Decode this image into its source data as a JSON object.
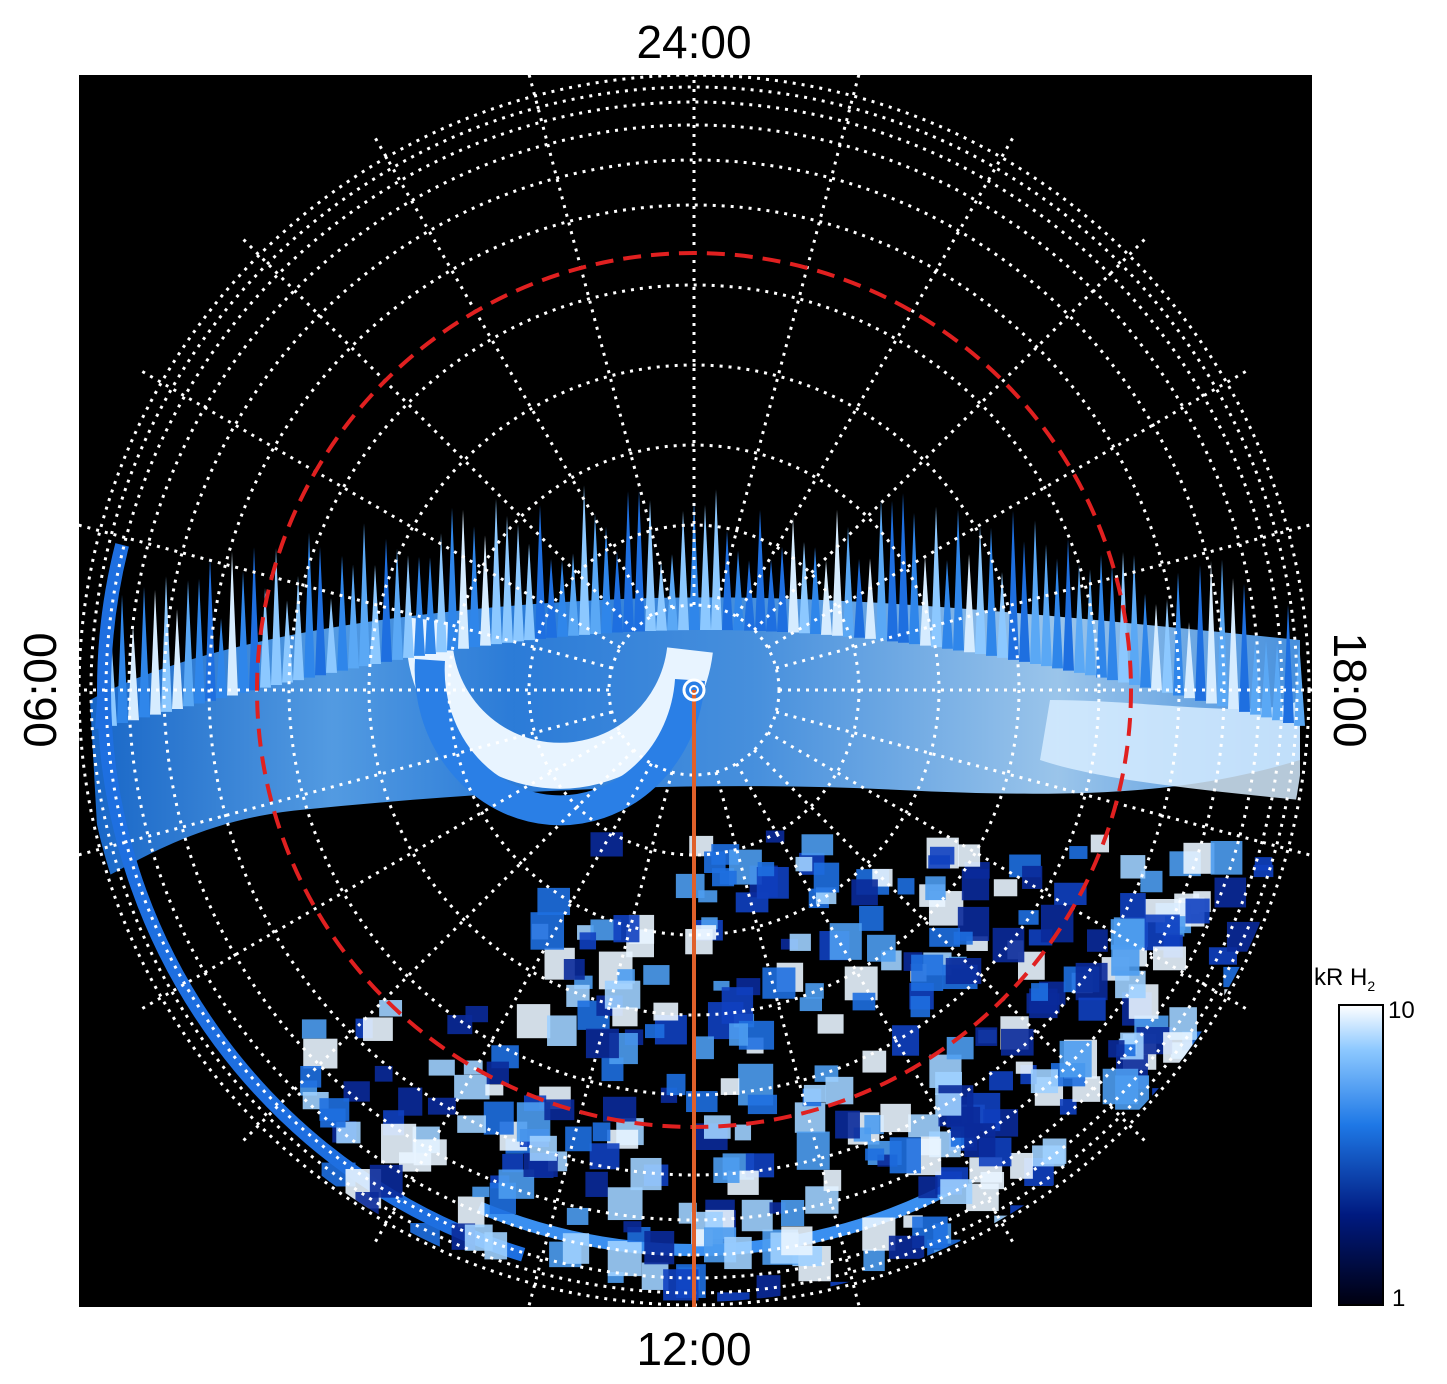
{
  "labels": {
    "top": "24:00",
    "bottom": "12:00",
    "left": "06:00",
    "right": "18:00"
  },
  "colorbar": {
    "title": "kR H",
    "subscript": "2",
    "max_label": "10",
    "min_label": "1"
  }
}
